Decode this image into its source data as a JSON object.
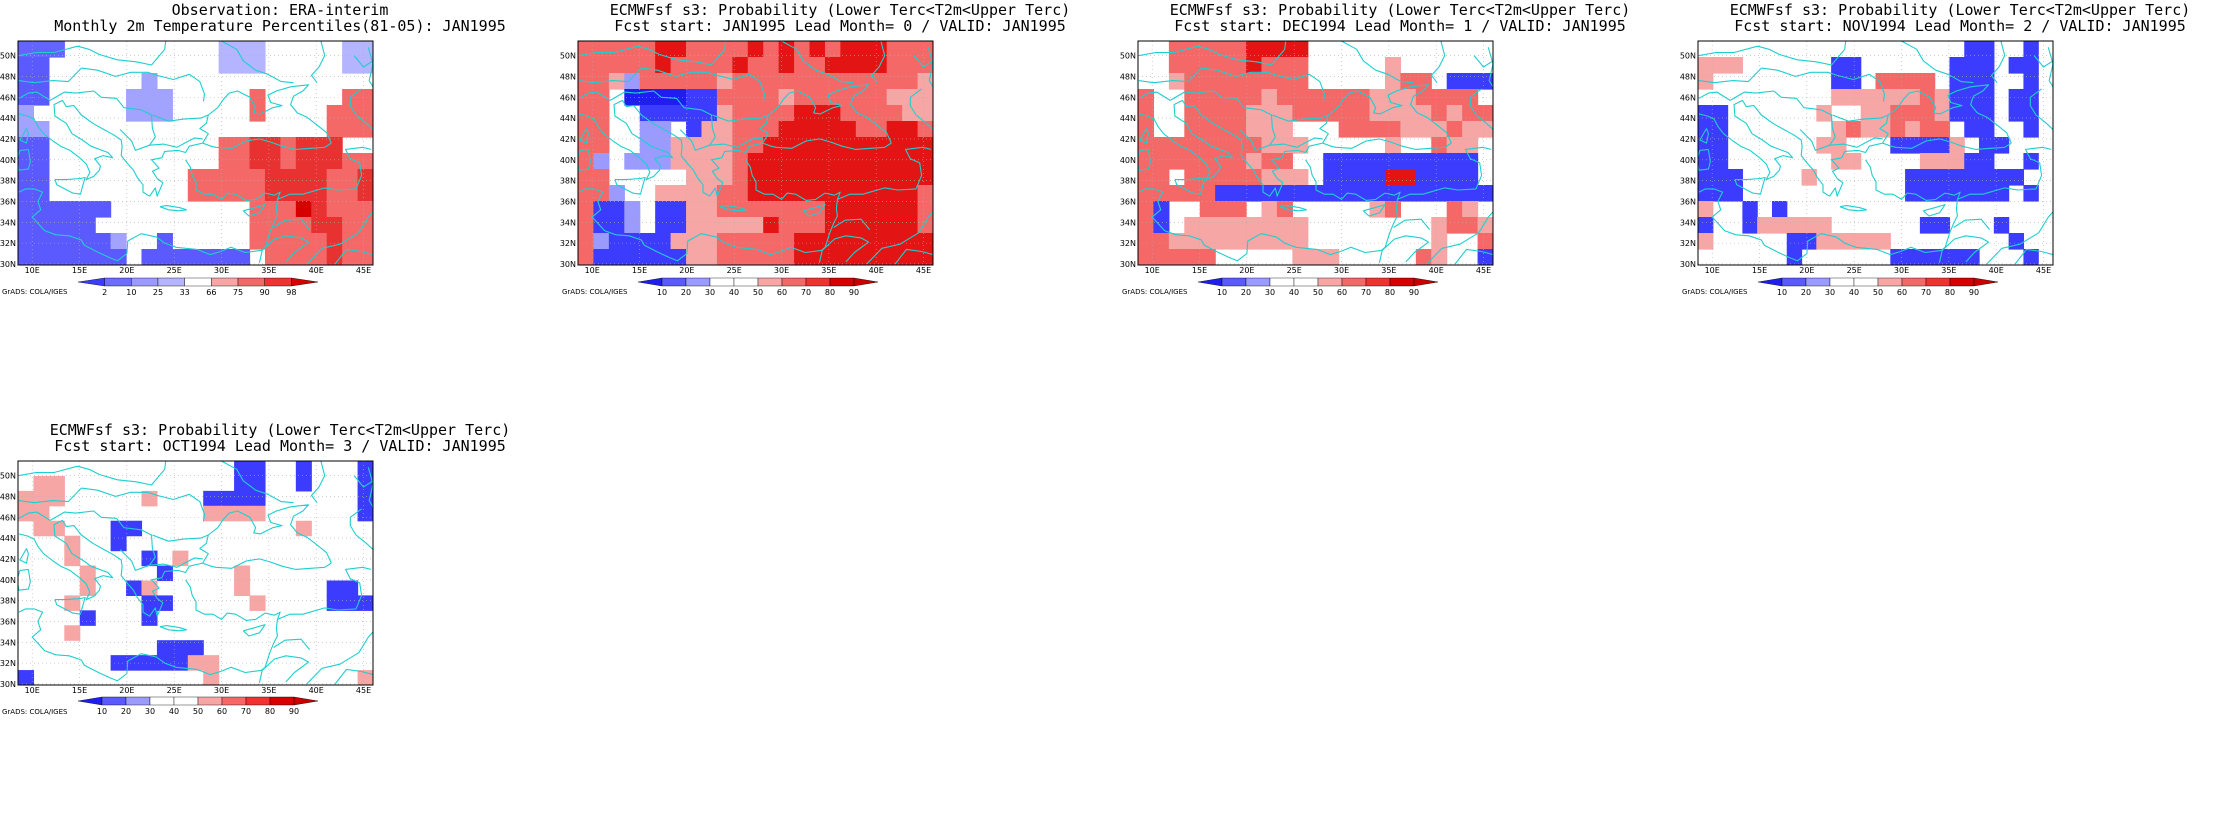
{
  "figure": {
    "panels": [
      {
        "id": "obs",
        "title_line1": "Observation: ERA-interim",
        "title_line2": "Monthly 2m Temperature Percentiles(81-05): JAN1995",
        "legend": "obs",
        "grid": [
          "xxx..........ccc.....cc",
          "bb...........ccc.....cc",
          "bb......a..............",
          "bb.....aaa.....r.....rr",
          "a......aaa.....r....rrr",
          "aa..................rrr",
          "bb...........rrssrsss..",
          "bb...........rrssrsssrr",
          "bb.........rrrrrssssrrs",
          "bb.........rrrrrssssrrs",
          "bbbbbb.........rrrtsrrr",
          "bbbbb..........rrrrssrr",
          "bbbbbba..b.....rrrrrsrr",
          "bbbbbbb.bbbbbbb.rrrrsrr"
        ]
      },
      {
        "id": "lead0",
        "title_line1": "ECMWFsf s3: Probability (Lower Terc<T2m<Upper Terc)",
        "title_line2": "Fcst start: JAN1995  Lead Month= 0 / VALID: JAN1995",
        "legend": "prob",
        "grid": [
          "SSSSSTTSSSSTSTSTSTTTSSS",
          "SSSSSTSSSSTSSTSSTTTTSSS",
          "SSRPSSSSSRSSSSSSSSSSSSR",
          "SS.BBBBDDSSSSRSSSSSSRRR",
          "SS..DDDDDRSSSSTTTSSSSRR",
          "SS..PP.DRRSSSTTTTTSSTTS",
          "SS..PPRRRRSSTTTTTTTTTTT",
          "SP.PPPRRRRSTTTTTTTTTTTT",
          "SS.....RRRSTTTTTTTTTTTT",
          "SSP..RRRRSSTTTTTTTTTTTS",
          "SDDP.DDRRSSSSSSSTTTTTTS",
          "SDDP.DDRRRRRTSSSTTTTTTS",
          "SPDDDDRRRSSSSSTTTTTTTTT",
          "SDDDDDDRRSSSSSTTTTTTTTT"
        ]
      },
      {
        "id": "lead1",
        "title_line1": "ECMWFsf s3: Probability (Lower Terc<T2m<Upper Terc)",
        "title_line2": "Fcst start: DEC1994  Lead Month= 1 / VALID: JAN1995",
        "legend": "prob",
        "grid": [
          "..SSSSSTTTT............",
          "..SSSSSTSSS.....R......",
          "..RSSSSSSSS.....RSS.DDD",
          "S..SSSSSRSSSSSSRRRSSSS.",
          "S..SSSSRRRSSSSSRRRRSRSS",
          "S..SSSSRRR...SSSSRRRSRR",
          "SSSSSSSSRRR.....R..SRR.",
          "SSSSSSSRSS..DDDDDDDDDD.",
          "SS.SSSSSRRR.DDDDTTDDDD.",
          "SSSSSDDDDDDDDDDDDDDDDDD",
          "SD..SSS.RS.....RS...SR.",
          "SD.RRRRRRRR........RSSR",
          "SSRRRRRRRRR........R..S",
          "SSSSS.....RRR.....SR..D"
        ]
      },
      {
        "id": "lead2",
        "title_line1": "ECMWFsf s3: Probability (Lower Terc<T2m<Upper Terc)",
        "title_line2": "Fcst start: NOV1994  Lead Month= 2 / VALID: JAN1995",
        "legend": "prob",
        "grid": [
          "..................DD..D",
          "RRR......DD......DDD.DD",
          "R........DD.SSSS.DDD..D",
          ".........RRRRRRSRDDD.DD",
          "DD......R..RRSSSRDDD.DD",
          "DD.......RSRRSRSS.DD..D",
          "DD......RR...DDDDR.DD..",
          "DD.......RR....RRRDD..D",
          "DDD....R......DDDDDDDD.",
          "DDD...........DDDDDDD.D",
          "R..D.D..................",
          "D..DRRRRR......DD...D..",
          "R.....DDRRRRR........D.",
          "......D......DDDDDD...D"
        ]
      },
      {
        "id": "lead3",
        "title_line1": "ECMWFsf s3: Probability (Lower Terc<T2m<Upper Terc)",
        "title_line2": "Fcst start: OCT1994  Lead Month= 3 / VALID: JAN1995",
        "legend": "prob",
        "grid": [
          "..............DD..D...D",
          ".RR...........DD..D...D",
          "RRR.....R...DDDD......D",
          "RR..........RRRR......D",
          ".RR...DD..........R....",
          "...R..D................",
          "...R....D.R............",
          "....R....D....R........",
          "....R..DR.....R.....DD.",
          "...R....DD.....R....DDD",
          "....D...D..............",
          "...R...................",
          ".........DDD...........",
          "......DDDDDRR..........",
          "D...........R.........R"
        ]
      }
    ],
    "prob_legend": {
      "values": [
        "10",
        "20",
        "30",
        "40",
        "50",
        "60",
        "70",
        "80",
        "90"
      ],
      "colors": [
        "#1e1ef0",
        "#5a5aff",
        "#9a9aff",
        "#ffffff",
        "#ffffff",
        "#f7a6a6",
        "#f46868",
        "#f03232",
        "#d60000",
        "#c80000"
      ]
    },
    "obs_legend": {
      "values": [
        "2",
        "10",
        "25",
        "33",
        "66",
        "75",
        "90",
        "98"
      ],
      "colors": [
        "#3c3cff",
        "#6c6cff",
        "#9a9aff",
        "#b4b4ff",
        "#ffffff",
        "#f7a6a6",
        "#f46868",
        "#f03232",
        "#d60000"
      ]
    },
    "x_ticks": [
      "10E",
      "15E",
      "20E",
      "25E",
      "30E",
      "35E",
      "40E",
      "45E"
    ],
    "y_ticks": [
      "50N",
      "48N",
      "46N",
      "44N",
      "42N",
      "40N",
      "38N",
      "36N",
      "34N",
      "32N",
      "30N"
    ],
    "credit": "GrADS: COLA/IGES",
    "colors": {
      "coast": "#1ecfcf",
      "frame": "#000000",
      "grid": "#b0b0b0"
    }
  }
}
